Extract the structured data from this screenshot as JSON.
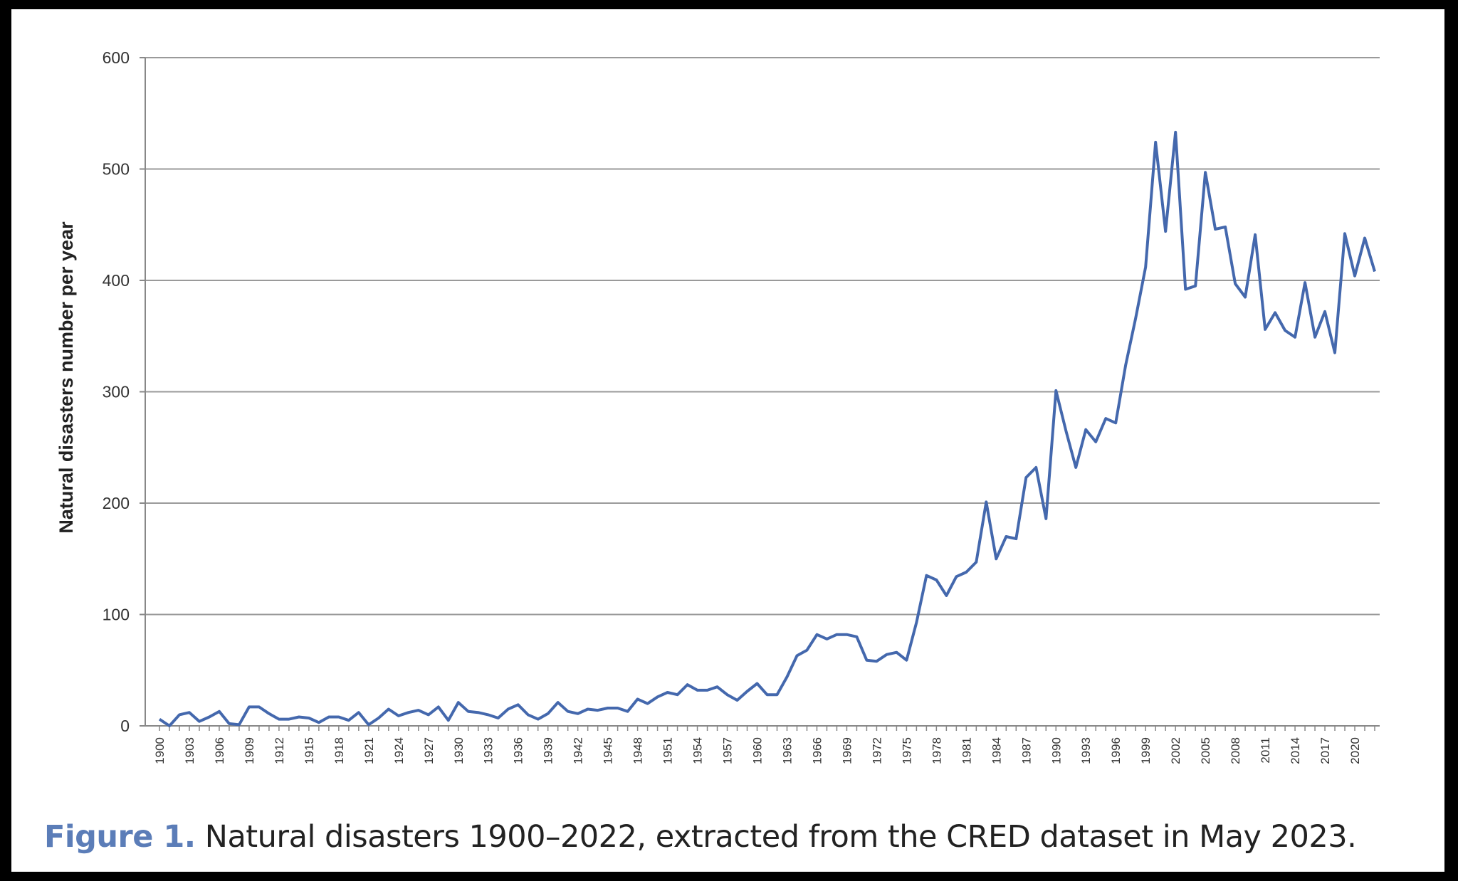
{
  "caption": {
    "label": "Figure 1.",
    "text": "Natural disasters 1900–2022, extracted from the CRED dataset in May 2023."
  },
  "chart_data": {
    "type": "line",
    "title": "",
    "xlabel": "",
    "ylabel": "Natural disasters number per year",
    "ylim": [
      0,
      600
    ],
    "yticks": [
      0,
      100,
      200,
      300,
      400,
      500,
      600
    ],
    "grid": true,
    "line_color": "#4468ad",
    "x_tick_labels": [
      "1900",
      "1903",
      "1906",
      "1909",
      "1912",
      "1915",
      "1918",
      "1921",
      "1924",
      "1927",
      "1930",
      "1933",
      "1936",
      "1939",
      "1942",
      "1945",
      "1948",
      "1951",
      "1954",
      "1957",
      "1960",
      "1963",
      "1966",
      "1969",
      "1972",
      "1975",
      "1978",
      "1981",
      "1984",
      "1987",
      "1990",
      "1993",
      "1996",
      "1999",
      "2002",
      "2005",
      "2008",
      "2011",
      "2014",
      "2017",
      "2020"
    ],
    "series": [
      {
        "x": [
          1900,
          1901,
          1902,
          1903,
          1904,
          1905,
          1906,
          1907,
          1908,
          1909,
          1910,
          1911,
          1912,
          1913,
          1914,
          1915,
          1916,
          1917,
          1918,
          1919,
          1920,
          1921,
          1922,
          1923,
          1924,
          1925,
          1926,
          1927,
          1928,
          1929,
          1930,
          1931,
          1932,
          1933,
          1934,
          1935,
          1936,
          1937,
          1938,
          1939,
          1940,
          1941,
          1942,
          1943,
          1944,
          1945,
          1946,
          1947,
          1948,
          1949,
          1950,
          1951,
          1952,
          1953,
          1954,
          1955,
          1956,
          1957,
          1958,
          1959,
          1960,
          1961,
          1962,
          1963,
          1964,
          1965,
          1966,
          1967,
          1968,
          1969,
          1970,
          1971,
          1972,
          1973,
          1974,
          1975,
          1976,
          1977,
          1978,
          1979,
          1980,
          1981,
          1982,
          1983,
          1984,
          1985,
          1986,
          1987,
          1988,
          1989,
          1990,
          1991,
          1992,
          1993,
          1994,
          1995,
          1996,
          1997,
          1998,
          1999,
          2000,
          2001,
          2002,
          2003,
          2004,
          2005,
          2006,
          2007,
          2008,
          2009,
          2010,
          2011,
          2012,
          2013,
          2014,
          2015,
          2016,
          2017,
          2018,
          2019,
          2020,
          2021,
          2022
        ],
        "values": [
          6,
          0,
          10,
          12,
          4,
          8,
          13,
          2,
          1,
          17,
          17,
          11,
          6,
          6,
          8,
          7,
          3,
          8,
          8,
          5,
          12,
          1,
          7,
          15,
          9,
          12,
          14,
          10,
          17,
          5,
          21,
          13,
          12,
          10,
          7,
          15,
          19,
          10,
          6,
          11,
          21,
          13,
          11,
          15,
          14,
          16,
          16,
          13,
          24,
          20,
          26,
          30,
          28,
          37,
          32,
          32,
          35,
          28,
          23,
          31,
          38,
          28,
          28,
          44,
          63,
          68,
          82,
          78,
          82,
          82,
          80,
          59,
          58,
          64,
          66,
          59,
          93,
          135,
          131,
          117,
          134,
          138,
          147,
          201,
          150,
          170,
          168,
          223,
          232,
          186,
          301,
          265,
          232,
          266,
          255,
          276,
          272,
          324,
          366,
          412,
          524,
          444,
          533,
          392,
          395,
          497,
          446,
          448,
          397,
          385,
          441,
          356,
          371,
          355,
          349,
          398,
          349,
          372,
          335,
          442,
          404,
          438,
          408
        ]
      }
    ]
  }
}
